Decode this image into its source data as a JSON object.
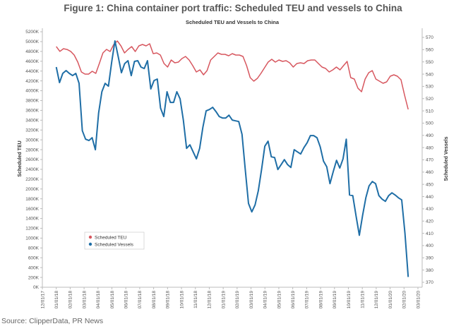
{
  "chart_data": {
    "type": "line",
    "figure_title": "Figure 1: China container port traffic: Scheduled TEU and vessels to China",
    "title": "Scheduled TEU and Vessels to China",
    "ylabel_left": "Scheduled TEU",
    "ylabel_right": "Scheduled Vessels",
    "ylim_left": [
      0,
      5200
    ],
    "ylim_right": [
      370,
      575
    ],
    "xlim_months_since_2017_12": [
      0,
      27
    ],
    "series_x_range_months": [
      1.0,
      26.3
    ],
    "left_ticks": [
      "0K",
      "200K",
      "400K",
      "600K",
      "800K",
      "1000K",
      "1200K",
      "1400K",
      "1600K",
      "1800K",
      "2000K",
      "2200K",
      "2400K",
      "2600K",
      "2800K",
      "3000K",
      "3200K",
      "3400K",
      "3600K",
      "3800K",
      "4000K",
      "4200K",
      "4400K",
      "4600K",
      "4800K",
      "5000K",
      "5200K"
    ],
    "left_tick_values": [
      0,
      200,
      400,
      600,
      800,
      1000,
      1200,
      1400,
      1600,
      1800,
      2000,
      2200,
      2400,
      2600,
      2800,
      3000,
      3200,
      3400,
      3600,
      3800,
      4000,
      4200,
      4400,
      4600,
      4800,
      5000,
      5200
    ],
    "right_ticks": [
      "370",
      "380",
      "390",
      "400",
      "410",
      "420",
      "430",
      "440",
      "450",
      "460",
      "470",
      "480",
      "490",
      "500",
      "510",
      "520",
      "530",
      "540",
      "550",
      "560",
      "570"
    ],
    "right_tick_values": [
      370,
      380,
      390,
      400,
      410,
      420,
      430,
      440,
      450,
      460,
      470,
      480,
      490,
      500,
      510,
      520,
      530,
      540,
      550,
      560,
      570
    ],
    "x_ticks": [
      "12/01/17",
      "01/01/18",
      "02/01/18",
      "03/01/18",
      "04/01/18",
      "05/01/18",
      "06/01/18",
      "07/01/18",
      "08/01/18",
      "09/01/18",
      "10/01/18",
      "11/01/18",
      "12/01/18",
      "01/01/19",
      "02/01/19",
      "03/01/19",
      "04/01/19",
      "05/01/19",
      "06/01/19",
      "07/01/19",
      "08/01/19",
      "09/01/19",
      "10/01/19",
      "11/01/19",
      "12/01/19",
      "01/01/20",
      "02/01/20",
      "03/01/20"
    ],
    "legend_position": "lower-left",
    "grid": false,
    "series": [
      {
        "name": "Scheduled TEU",
        "axis": "left",
        "unit": "K",
        "color": "#d7575f",
        "values": [
          4900,
          4800,
          4855,
          4840,
          4800,
          4726,
          4582,
          4381,
          4338,
          4338,
          4395,
          4353,
          4554,
          4769,
          4841,
          4798,
          4942,
          5013,
          4913,
          4769,
          4841,
          4898,
          4798,
          4913,
          4942,
          4913,
          4956,
          4755,
          4769,
          4726,
          4554,
          4482,
          4625,
          4568,
          4582,
          4654,
          4697,
          4625,
          4511,
          4381,
          4424,
          4324,
          4410,
          4625,
          4697,
          4769,
          4741,
          4741,
          4712,
          4755,
          4726,
          4726,
          4697,
          4511,
          4266,
          4195,
          4252,
          4353,
          4467,
          4582,
          4640,
          4582,
          4625,
          4597,
          4611,
          4568,
          4482,
          4554,
          4568,
          4554,
          4611,
          4625,
          4625,
          4554,
          4482,
          4453,
          4381,
          4424,
          4482,
          4424,
          4511,
          4597,
          4266,
          4238,
          4051,
          3979,
          4238,
          4367,
          4410,
          4238,
          4195,
          4152,
          4180,
          4295,
          4324,
          4295,
          4223,
          3907,
          3620
        ]
      },
      {
        "name": "Scheduled Vessels",
        "axis": "right",
        "unit": "",
        "color": "#1f6ea6",
        "values": [
          545.8,
          533.1,
          540.6,
          542.9,
          540.6,
          538.8,
          540.6,
          532.5,
          493.8,
          486.9,
          485.8,
          488.1,
          478.3,
          508.3,
          525.6,
          532.5,
          530.2,
          549.8,
          567.1,
          554.4,
          541.2,
          548.6,
          551,
          538.8,
          550.4,
          551,
          545.8,
          544.6,
          551,
          527.9,
          534.8,
          536,
          512.3,
          505.4,
          525.6,
          516.9,
          516.9,
          525.6,
          519.8,
          502.5,
          479.4,
          482.3,
          476.5,
          470.8,
          479.4,
          496.7,
          510,
          511.1,
          512.9,
          509.4,
          505.4,
          504.2,
          504.2,
          506.5,
          502.5,
          501.9,
          501.3,
          490.9,
          462.1,
          434.4,
          427.5,
          433.2,
          444.8,
          462.1,
          481.1,
          485.2,
          472.5,
          471.9,
          462.1,
          466.1,
          470.2,
          466.1,
          463.8,
          478.3,
          476.5,
          474.8,
          480,
          484,
          489.8,
          489.8,
          488.1,
          480.6,
          469,
          464.4,
          450.6,
          460.4,
          469.6,
          463.3,
          470.8,
          486.9,
          441.3,
          440.8,
          424,
          408.4,
          424.6,
          439,
          448.8,
          452.3,
          450.6,
          440.8,
          437.9,
          436.1,
          440.8,
          443.1,
          441.3,
          439,
          437.3,
          410.2,
          374.4
        ]
      }
    ],
    "source": "Source: ClipperData, PR News"
  }
}
